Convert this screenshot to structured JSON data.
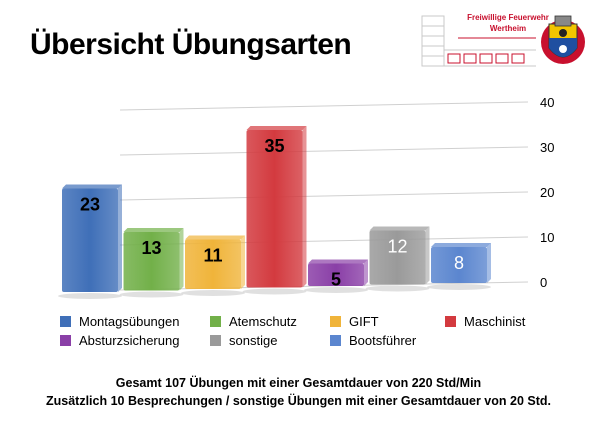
{
  "page": {
    "title": "Übersicht Übungsarten",
    "logo_line1": "Freiwillige Feuerwehr",
    "logo_line2": "Wertheim"
  },
  "chart_data": {
    "type": "bar",
    "categories": [
      "Montagsübungen",
      "Atemschutz",
      "GIFT",
      "Maschinist",
      "Absturzsicherung",
      "sonstige",
      "Bootsführer"
    ],
    "values": [
      23,
      13,
      11,
      35,
      5,
      12,
      8
    ],
    "colors": [
      "#3f6fb8",
      "#72b049",
      "#f0b43a",
      "#d33a3f",
      "#8a3fa7",
      "#9a9a9a",
      "#5b86cf"
    ],
    "label_colors": [
      "#000000",
      "#000000",
      "#000000",
      "#000000",
      "#000000",
      "#ffffff",
      "#ffffff"
    ],
    "ylim": [
      0,
      40
    ],
    "yticks": [
      "0",
      "10",
      "20",
      "30",
      "40"
    ],
    "grid": true,
    "legend_position": "bottom"
  },
  "footer": {
    "line1": "Gesamt 107 Übungen mit einer Gesamtdauer von 220 Std/Min",
    "line2": "Zusätzlich 10 Besprechungen / sonstige Übungen mit einer Gesamtdauer von 20 Std."
  }
}
